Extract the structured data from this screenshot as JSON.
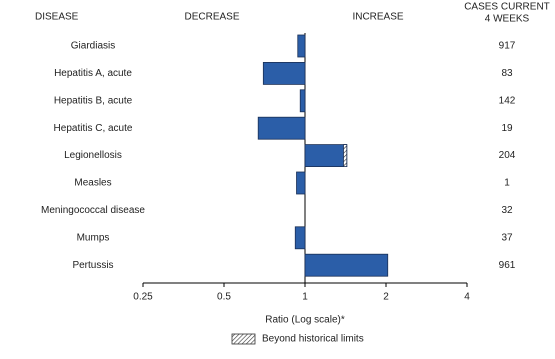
{
  "chart_data": {
    "type": "hbar",
    "headers": {
      "disease": "DISEASE",
      "decrease": "DECREASE",
      "increase": "INCREASE",
      "cases": [
        "CASES CURRENT",
        "4 WEEKS"
      ]
    },
    "categories": [
      "Giardiasis",
      "Hepatitis A, acute",
      "Hepatitis B, acute",
      "Hepatitis C, acute",
      "Legionellosis",
      "Measles",
      "Meningococcal disease",
      "Mumps",
      "Pertussis"
    ],
    "series": [
      {
        "color": "#2b5ea8",
        "values": [
          0.94,
          0.7,
          0.96,
          0.67,
          1.43,
          0.93,
          1,
          0.92,
          2.03
        ],
        "beyond_limits_from": [
          null,
          null,
          null,
          null,
          1.39,
          null,
          null,
          null,
          null
        ]
      }
    ],
    "cases": [
      917,
      83,
      142,
      19,
      204,
      1,
      32,
      37,
      961
    ],
    "xscale": "log",
    "xlim": [
      0.25,
      4
    ],
    "xticks": [
      0.25,
      0.5,
      1,
      2,
      4
    ],
    "xlabel": "Ratio (Log scale)*",
    "legend": {
      "label": "Beyond historical limits",
      "position": "bottom"
    }
  }
}
